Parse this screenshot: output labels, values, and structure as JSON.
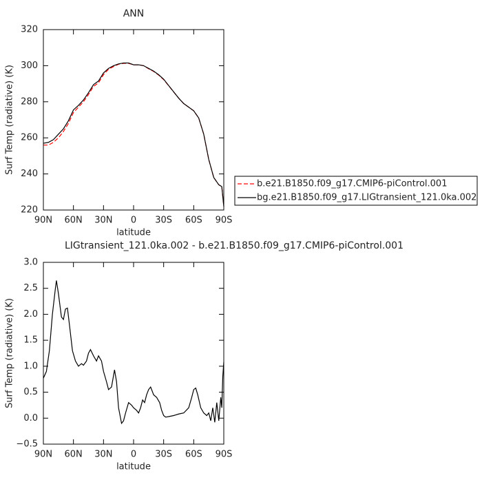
{
  "chart_data": [
    {
      "type": "line",
      "title": "ANN",
      "xlabel": "latitude",
      "ylabel": "Surf Temp (radiative) (K)",
      "x": [
        90,
        85,
        80,
        75,
        70,
        65,
        60,
        55,
        50,
        45,
        40,
        35,
        30,
        25,
        20,
        15,
        10,
        5,
        0,
        -5,
        -10,
        -15,
        -20,
        -25,
        -30,
        -35,
        -40,
        -45,
        -50,
        -55,
        -60,
        -65,
        -70,
        -75,
        -80,
        -85,
        -88,
        -90
      ],
      "series": [
        {
          "name": "b.e21.B1850.f09_g17.CMIP6-piControl.001",
          "color": "#ff0000",
          "dash": true,
          "values": [
            256,
            256,
            257.5,
            260,
            263.5,
            268,
            274,
            277,
            280,
            284,
            288.5,
            290.5,
            295,
            298,
            299.5,
            300.8,
            301.3,
            301.3,
            300.5,
            300.5,
            300,
            298.3,
            296.8,
            294.8,
            292.3,
            288.9,
            285.4,
            282,
            279,
            277,
            275,
            271,
            262,
            248,
            238,
            234,
            233,
            222
          ]
        },
        {
          "name": "bg.e21.B1850.f09_g17.LIGtransient_121.0ka.002",
          "color": "#000000",
          "dash": false,
          "values": [
            257,
            257.5,
            259,
            262,
            265,
            269.5,
            275.5,
            278,
            281,
            285,
            289.5,
            291.5,
            296,
            298.5,
            300,
            301,
            301.5,
            301.5,
            300.5,
            300.5,
            300,
            298.5,
            297,
            295,
            292.5,
            289,
            285.5,
            282,
            279,
            277,
            275,
            271,
            262,
            248,
            238,
            234,
            233,
            222
          ]
        }
      ],
      "xlim": [
        90,
        -90
      ],
      "xticks": [
        {
          "value": 90,
          "label": "90N"
        },
        {
          "value": 60,
          "label": "60N"
        },
        {
          "value": 30,
          "label": "30N"
        },
        0,
        {
          "value": -30,
          "label": "30S"
        },
        {
          "value": -60,
          "label": "60S"
        },
        {
          "value": -90,
          "label": "90S"
        }
      ],
      "ylim": [
        220,
        320
      ],
      "yticks": [
        220,
        240,
        260,
        280,
        300,
        320
      ],
      "legend": "right"
    },
    {
      "type": "line",
      "title": "LIGtransient_121.0ka.002 - b.e21.B1850.f09_g17.CMIP6-piControl.001",
      "xlabel": "latitude",
      "ylabel": "Surf Temp (radiative) (K)",
      "x": [
        90,
        87,
        84,
        81,
        78,
        77,
        75,
        72,
        70,
        68,
        66,
        64,
        61,
        58,
        55,
        52,
        50,
        47,
        45,
        43,
        40,
        37,
        35,
        32,
        30,
        27,
        25,
        22,
        19,
        17,
        15,
        12,
        10,
        8,
        5,
        2,
        0,
        -3,
        -5,
        -7,
        -9,
        -11,
        -13,
        -15,
        -17,
        -20,
        -23,
        -26,
        -28,
        -30,
        -32,
        -35,
        -40,
        -45,
        -50,
        -55,
        -58,
        -60,
        -62,
        -64,
        -67,
        -70,
        -73,
        -75,
        -77,
        -79,
        -81,
        -83,
        -85,
        -87,
        -88,
        -89,
        -90
      ],
      "series": [
        {
          "name": null,
          "color": "#000000",
          "dash": false,
          "values": [
            0.77,
            0.9,
            1.3,
            2.0,
            2.5,
            2.65,
            2.4,
            1.95,
            1.9,
            2.1,
            2.12,
            1.8,
            1.3,
            1.1,
            1.0,
            1.05,
            1.02,
            1.1,
            1.25,
            1.32,
            1.2,
            1.1,
            1.2,
            1.1,
            0.9,
            0.7,
            0.55,
            0.6,
            0.93,
            0.7,
            0.2,
            -0.1,
            -0.05,
            0.1,
            0.3,
            0.25,
            0.2,
            0.15,
            0.1,
            0.2,
            0.35,
            0.3,
            0.45,
            0.55,
            0.6,
            0.45,
            0.4,
            0.3,
            0.15,
            0.05,
            0.02,
            0.03,
            0.05,
            0.08,
            0.1,
            0.2,
            0.4,
            0.55,
            0.58,
            0.45,
            0.2,
            0.1,
            0.05,
            0.1,
            -0.05,
            0.2,
            -0.08,
            0.3,
            -0.05,
            0.4,
            0.2,
            0.8,
            1.08
          ]
        }
      ],
      "xlim": [
        90,
        -90
      ],
      "xticks": [
        {
          "value": 90,
          "label": "90N"
        },
        {
          "value": 60,
          "label": "60N"
        },
        {
          "value": 30,
          "label": "30N"
        },
        0,
        {
          "value": -30,
          "label": "30S"
        },
        {
          "value": -60,
          "label": "60S"
        },
        {
          "value": -90,
          "label": "90S"
        }
      ],
      "ylim": [
        -0.5,
        3
      ],
      "yticks": [
        {
          "value": -0.5,
          "label": "−0.5"
        },
        {
          "value": 0,
          "label": "0.0"
        },
        0.5,
        {
          "value": 1,
          "label": "1.0"
        },
        1.5,
        {
          "value": 2,
          "label": "2.0"
        },
        2.5,
        {
          "value": 3,
          "label": "3.0"
        }
      ]
    }
  ]
}
